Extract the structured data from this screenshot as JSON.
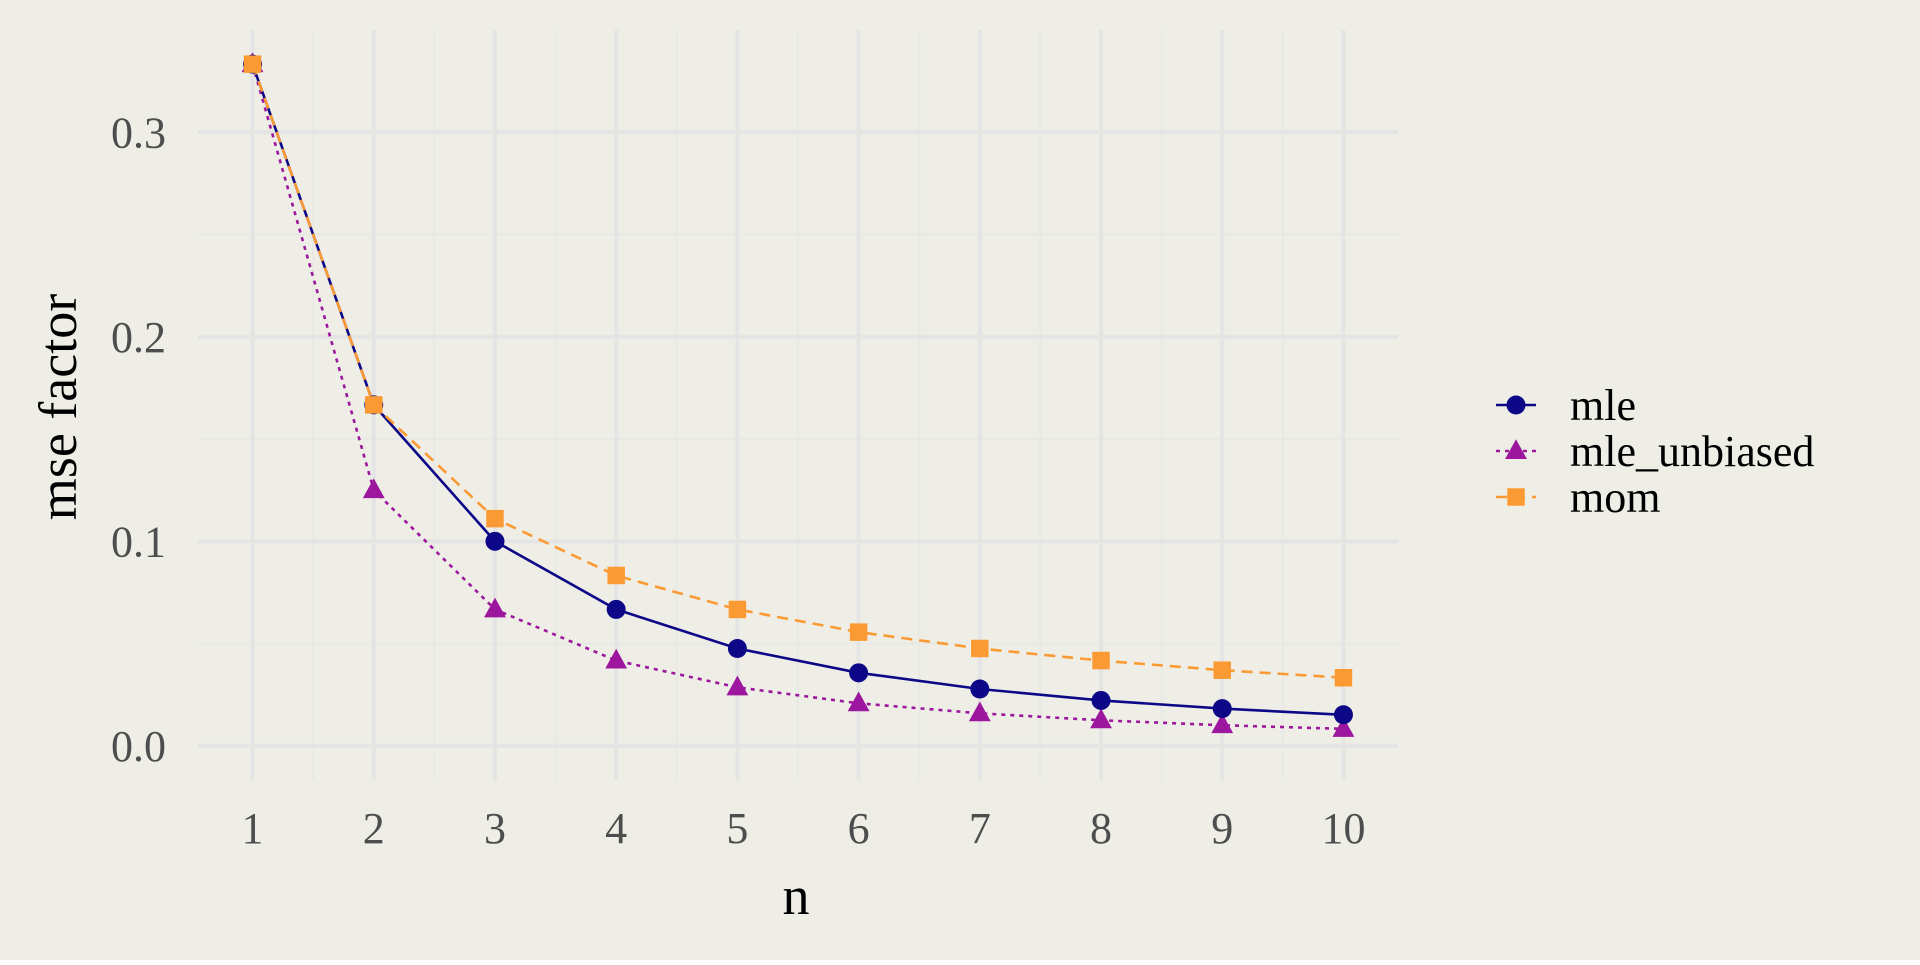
{
  "chart_data": {
    "type": "line",
    "xlabel": "n",
    "ylabel": "mse factor",
    "x": [
      1,
      2,
      3,
      4,
      5,
      6,
      7,
      8,
      9,
      10
    ],
    "x_ticks": [
      "1",
      "2",
      "3",
      "4",
      "5",
      "6",
      "7",
      "8",
      "9",
      "10"
    ],
    "y_ticks": [
      {
        "value": 0.0,
        "label": "0.0"
      },
      {
        "value": 0.1,
        "label": "0.1"
      },
      {
        "value": 0.2,
        "label": "0.2"
      },
      {
        "value": 0.3,
        "label": "0.3"
      }
    ],
    "xlim": [
      0.55,
      10.45
    ],
    "ylim": [
      -0.0167,
      0.35
    ],
    "grid": true,
    "legend_position": "right",
    "series": [
      {
        "name": "mle",
        "marker": "circle",
        "line_style": "solid",
        "color": "#0D0887",
        "values": [
          0.3333,
          0.1667,
          0.1,
          0.0667,
          0.0476,
          0.0357,
          0.0278,
          0.0222,
          0.0182,
          0.0152
        ]
      },
      {
        "name": "mle_unbiased",
        "marker": "triangle",
        "line_style": "dotted",
        "color": "#9C179E",
        "values": [
          0.3333,
          0.125,
          0.0667,
          0.0417,
          0.0286,
          0.0208,
          0.0159,
          0.0125,
          0.0101,
          0.0083
        ]
      },
      {
        "name": "mom",
        "marker": "square",
        "line_style": "dashed",
        "color": "#FB9A33",
        "values": [
          0.3333,
          0.1667,
          0.1111,
          0.0833,
          0.0667,
          0.0556,
          0.0476,
          0.0417,
          0.037,
          0.0333
        ]
      }
    ],
    "colors": {
      "background": "#EEEEE6",
      "grid_major": "#E4E4E4",
      "grid_minor": "#E8E8E5",
      "tick_text": "#4D4D4D"
    }
  }
}
